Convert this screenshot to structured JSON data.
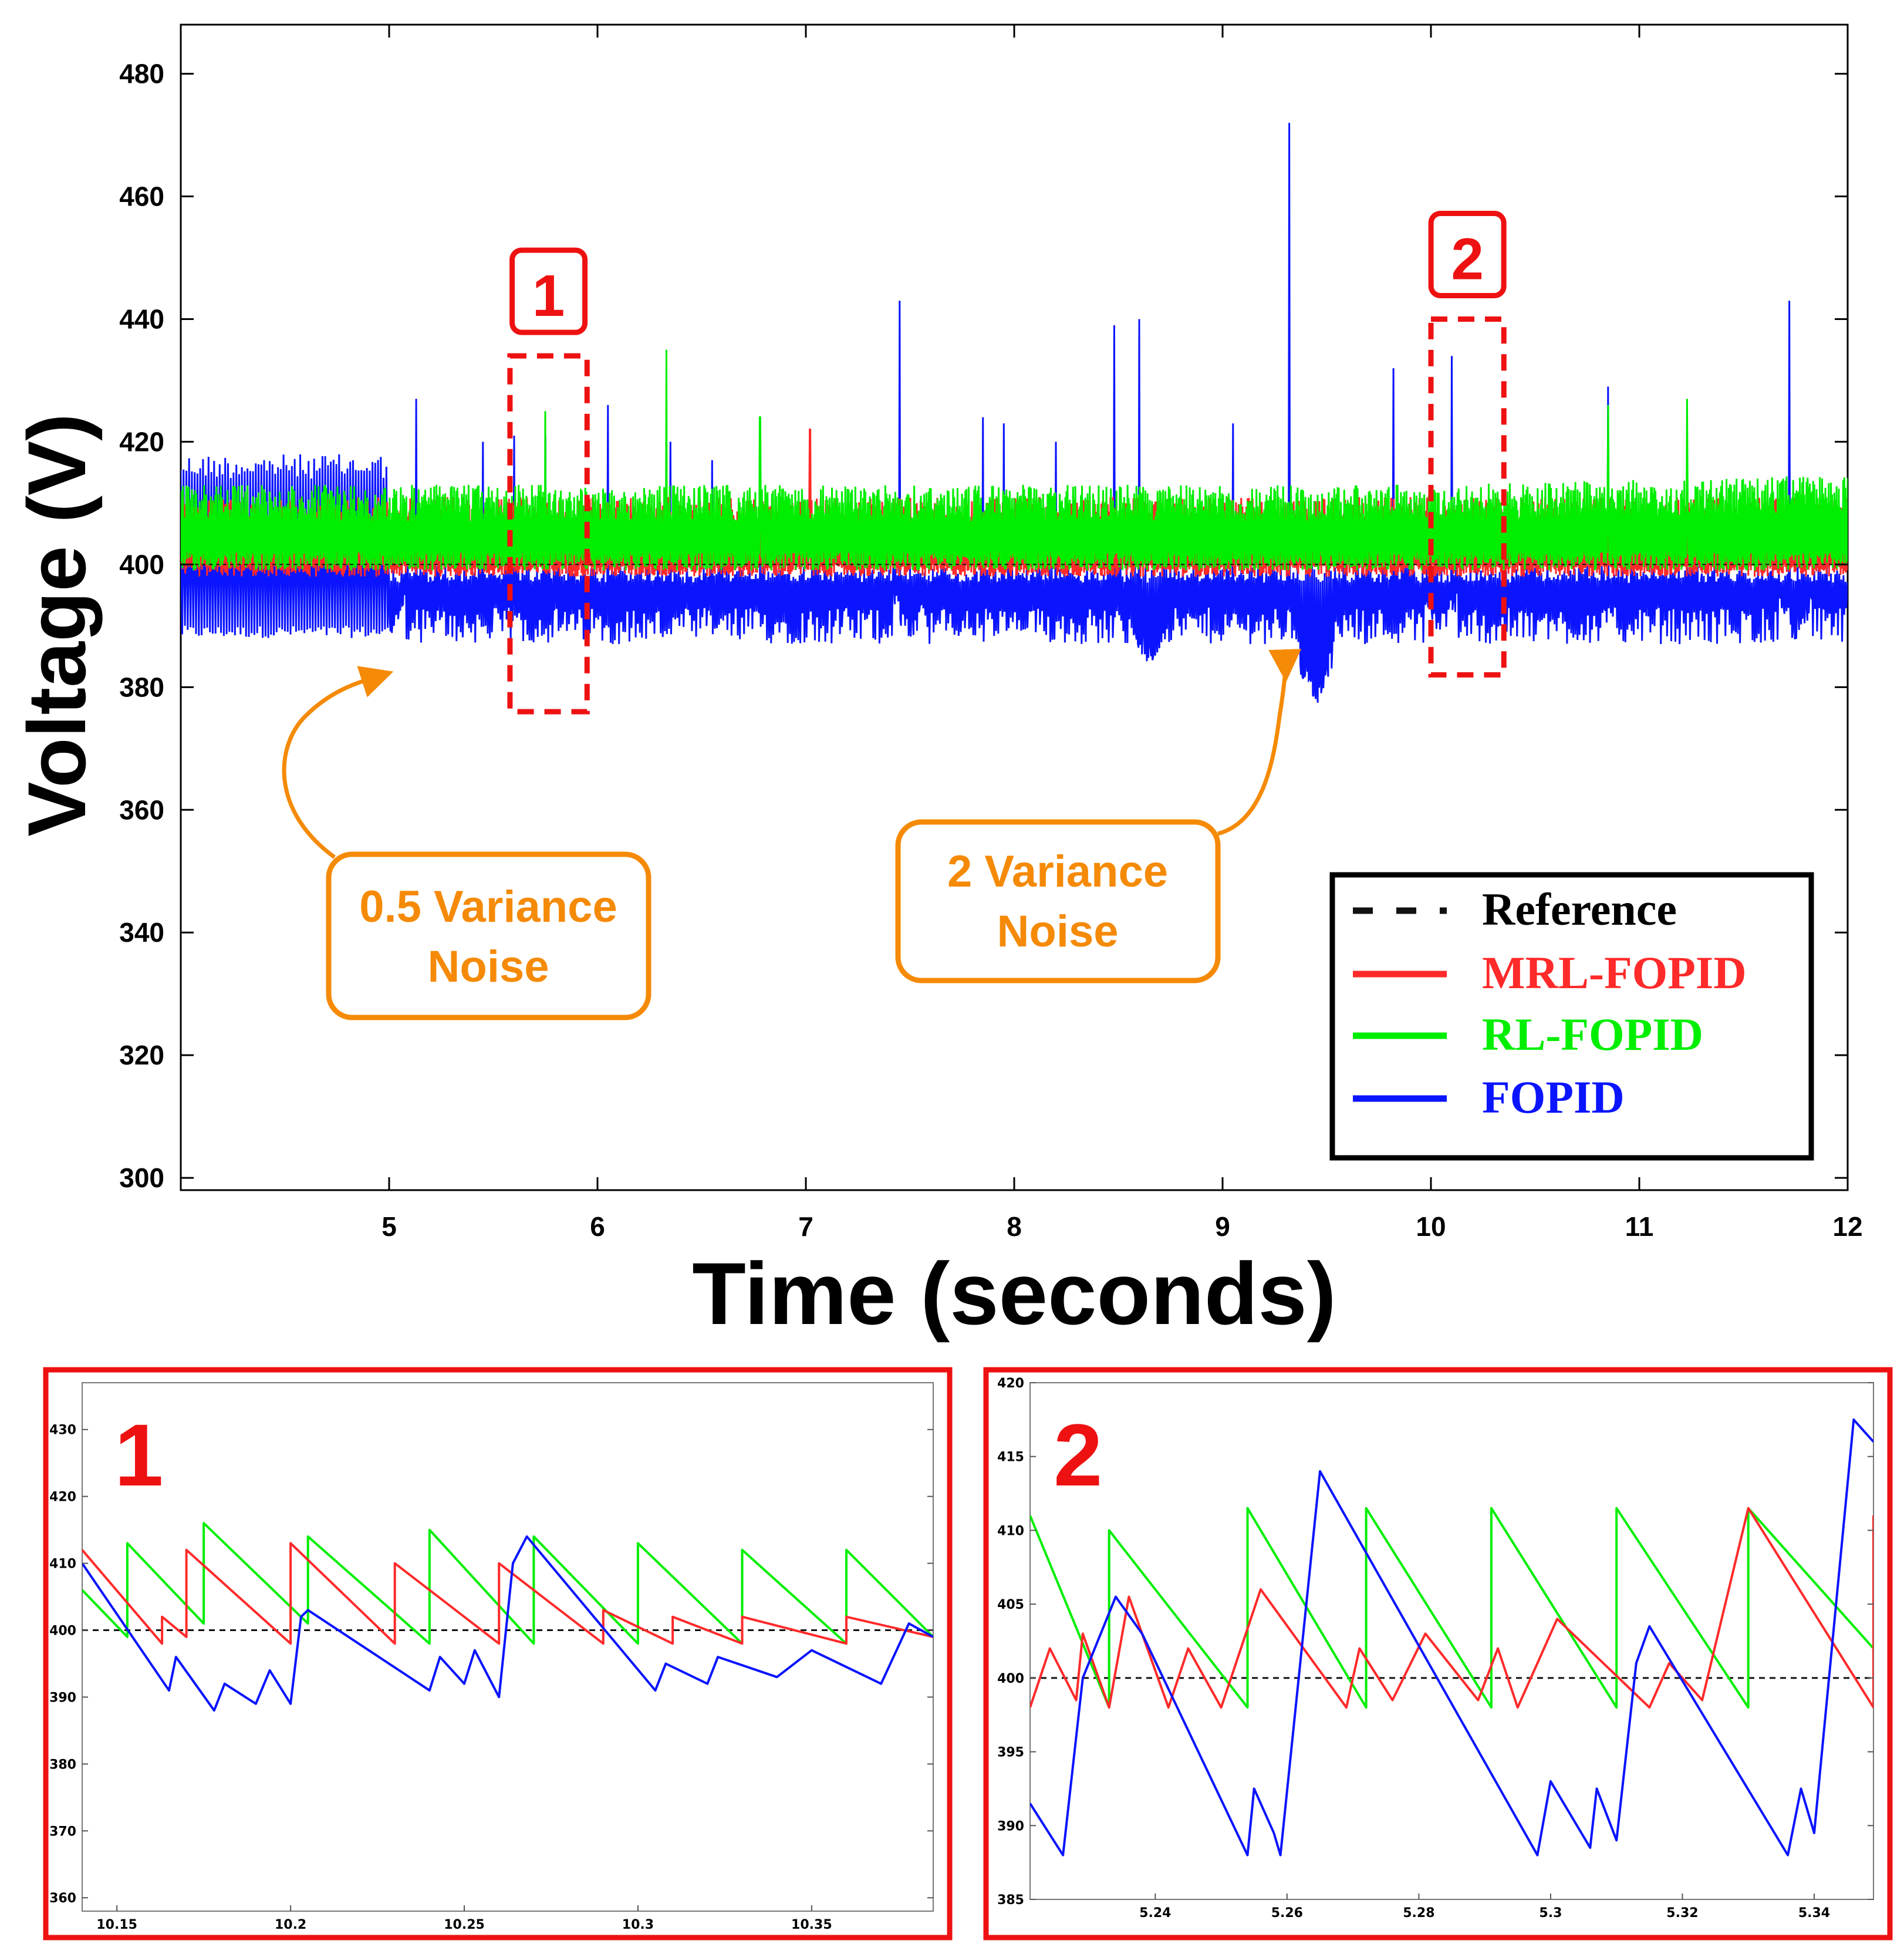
{
  "colors": {
    "reference": "#111111",
    "mrl": "#FF2A2A",
    "rl": "#00EE00",
    "fopid": "#0A14FF",
    "callout": "#F58A07",
    "highlight": "#EE1111"
  },
  "chart_data": [
    {
      "id": "main",
      "type": "line",
      "xlabel": "Time (seconds)",
      "ylabel": "Voltage (V)",
      "xlim": [
        4.0,
        12.0
      ],
      "ylim": [
        298,
        488
      ],
      "xticks": [
        5,
        6,
        7,
        8,
        9,
        10,
        11,
        12
      ],
      "yticks": [
        300,
        320,
        340,
        360,
        380,
        400,
        420,
        440,
        460,
        480
      ],
      "reference_value": 400,
      "legend": {
        "position": "bottom-right",
        "entries": [
          {
            "label": "Reference",
            "series": "reference",
            "style": "dashed"
          },
          {
            "label": "MRL-FOPID",
            "series": "mrl",
            "style": "solid"
          },
          {
            "label": "RL-FOPID",
            "series": "rl",
            "style": "solid"
          },
          {
            "label": "FOPID",
            "series": "fopid",
            "style": "solid"
          }
        ]
      },
      "series_envelopes": {
        "mrl": {
          "low": 398,
          "high": 411
        },
        "rl": {
          "low": 399,
          "high": 413
        },
        "fopid": {
          "low": 387,
          "high": 400
        }
      },
      "fopid_spikes": [
        {
          "x": 5.13,
          "y": 427
        },
        {
          "x": 5.45,
          "y": 420
        },
        {
          "x": 5.6,
          "y": 421
        },
        {
          "x": 5.75,
          "y": 421
        },
        {
          "x": 6.05,
          "y": 426
        },
        {
          "x": 6.35,
          "y": 420
        },
        {
          "x": 6.55,
          "y": 417
        },
        {
          "x": 7.45,
          "y": 443
        },
        {
          "x": 7.85,
          "y": 424
        },
        {
          "x": 7.95,
          "y": 423
        },
        {
          "x": 8.2,
          "y": 420
        },
        {
          "x": 8.48,
          "y": 439
        },
        {
          "x": 8.6,
          "y": 440
        },
        {
          "x": 9.05,
          "y": 423
        },
        {
          "x": 9.32,
          "y": 472
        },
        {
          "x": 9.82,
          "y": 432
        },
        {
          "x": 10.1,
          "y": 434
        },
        {
          "x": 10.85,
          "y": 429
        },
        {
          "x": 11.72,
          "y": 443
        }
      ],
      "fopid_dips": [
        {
          "x": 5.0,
          "y": 388
        },
        {
          "x": 7.5,
          "y": 387
        },
        {
          "x": 8.65,
          "y": 383
        },
        {
          "x": 9.45,
          "y": 377
        },
        {
          "x": 10.05,
          "y": 388
        },
        {
          "x": 11.75,
          "y": 387
        }
      ],
      "green_spikes": [
        {
          "x": 5.75,
          "y": 425
        },
        {
          "x": 6.33,
          "y": 435
        },
        {
          "x": 6.78,
          "y": 424
        },
        {
          "x": 10.85,
          "y": 426
        },
        {
          "x": 11.23,
          "y": 427
        }
      ],
      "red_spikes": [
        {
          "x": 7.02,
          "y": 422
        }
      ],
      "zoom_boxes": [
        {
          "label": "1",
          "x": [
            5.58,
            5.95
          ],
          "y": [
            376,
            434
          ]
        },
        {
          "label": "2",
          "x": [
            10.0,
            10.35
          ],
          "y": [
            382,
            440
          ]
        }
      ],
      "annotations": [
        {
          "text": [
            "0.5 Variance",
            "Noise"
          ],
          "points_to": {
            "x": 5.0,
            "y": 385
          }
        },
        {
          "text": [
            "2 Variance",
            "Noise"
          ],
          "points_to": {
            "x": 9.32,
            "y": 385
          }
        }
      ]
    },
    {
      "id": "inset1",
      "type": "line",
      "label": "1",
      "xlim": [
        10.14,
        10.385
      ],
      "ylim": [
        358,
        437
      ],
      "xticks": [
        10.15,
        10.2,
        10.25,
        10.3,
        10.35
      ],
      "yticks": [
        360,
        370,
        380,
        390,
        400,
        410,
        420,
        430
      ],
      "reference_value": 400,
      "series": {
        "rl": [
          [
            10.14,
            406
          ],
          [
            10.153,
            399
          ],
          [
            10.153,
            413
          ],
          [
            10.175,
            401
          ],
          [
            10.175,
            416
          ],
          [
            10.205,
            401
          ],
          [
            10.205,
            414
          ],
          [
            10.24,
            398
          ],
          [
            10.24,
            415
          ],
          [
            10.27,
            398
          ],
          [
            10.27,
            414
          ],
          [
            10.3,
            398
          ],
          [
            10.3,
            413
          ],
          [
            10.33,
            398
          ],
          [
            10.33,
            412
          ],
          [
            10.36,
            398
          ],
          [
            10.36,
            412
          ],
          [
            10.385,
            399
          ]
        ],
        "mrl": [
          [
            10.14,
            412
          ],
          [
            10.163,
            398
          ],
          [
            10.163,
            402
          ],
          [
            10.17,
            399
          ],
          [
            10.17,
            412
          ],
          [
            10.2,
            398
          ],
          [
            10.2,
            413
          ],
          [
            10.23,
            398
          ],
          [
            10.23,
            410
          ],
          [
            10.26,
            398
          ],
          [
            10.26,
            410
          ],
          [
            10.29,
            398
          ],
          [
            10.29,
            403
          ],
          [
            10.31,
            398
          ],
          [
            10.31,
            402
          ],
          [
            10.33,
            398
          ],
          [
            10.33,
            402
          ],
          [
            10.36,
            398
          ],
          [
            10.36,
            402
          ],
          [
            10.385,
            399
          ]
        ],
        "fopid": [
          [
            10.14,
            410
          ],
          [
            10.165,
            391
          ],
          [
            10.167,
            396
          ],
          [
            10.178,
            388
          ],
          [
            10.181,
            392
          ],
          [
            10.19,
            389
          ],
          [
            10.194,
            394
          ],
          [
            10.2,
            389
          ],
          [
            10.203,
            402
          ],
          [
            10.205,
            403
          ],
          [
            10.24,
            391
          ],
          [
            10.243,
            396
          ],
          [
            10.25,
            392
          ],
          [
            10.253,
            397
          ],
          [
            10.26,
            390
          ],
          [
            10.264,
            410
          ],
          [
            10.268,
            414
          ],
          [
            10.305,
            391
          ],
          [
            10.308,
            395
          ],
          [
            10.32,
            392
          ],
          [
            10.323,
            396
          ],
          [
            10.34,
            393
          ],
          [
            10.35,
            397
          ],
          [
            10.37,
            392
          ],
          [
            10.378,
            401
          ],
          [
            10.385,
            399
          ]
        ]
      }
    },
    {
      "id": "inset2",
      "type": "line",
      "label": "2",
      "xlim": [
        5.221,
        5.349
      ],
      "ylim": [
        385,
        420
      ],
      "xticks": [
        5.24,
        5.26,
        5.28,
        5.3,
        5.32,
        5.34
      ],
      "yticks": [
        385,
        390,
        395,
        400,
        405,
        410,
        415,
        420
      ],
      "reference_value": 400,
      "series": {
        "rl": [
          [
            5.221,
            411
          ],
          [
            5.233,
            398
          ],
          [
            5.233,
            410
          ],
          [
            5.254,
            398
          ],
          [
            5.254,
            411.5
          ],
          [
            5.272,
            398
          ],
          [
            5.272,
            411.5
          ],
          [
            5.291,
            398
          ],
          [
            5.291,
            411.5
          ],
          [
            5.31,
            398
          ],
          [
            5.31,
            411.5
          ],
          [
            5.33,
            398
          ],
          [
            5.33,
            411.5
          ],
          [
            5.349,
            402
          ]
        ],
        "mrl": [
          [
            5.221,
            398
          ],
          [
            5.224,
            402
          ],
          [
            5.228,
            398.5
          ],
          [
            5.229,
            403
          ],
          [
            5.233,
            398
          ],
          [
            5.236,
            405.5
          ],
          [
            5.242,
            398
          ],
          [
            5.245,
            402
          ],
          [
            5.25,
            398
          ],
          [
            5.256,
            406
          ],
          [
            5.269,
            398
          ],
          [
            5.271,
            402
          ],
          [
            5.276,
            398.5
          ],
          [
            5.281,
            403
          ],
          [
            5.289,
            398.5
          ],
          [
            5.292,
            402
          ],
          [
            5.295,
            398
          ],
          [
            5.301,
            404
          ],
          [
            5.315,
            398
          ],
          [
            5.318,
            401
          ],
          [
            5.323,
            398.5
          ],
          [
            5.33,
            411.5
          ],
          [
            5.349,
            398
          ],
          [
            5.349,
            411
          ]
        ],
        "fopid": [
          [
            5.221,
            391.5
          ],
          [
            5.226,
            388
          ],
          [
            5.229,
            400
          ],
          [
            5.234,
            405.5
          ],
          [
            5.238,
            403
          ],
          [
            5.254,
            388
          ],
          [
            5.255,
            392.5
          ],
          [
            5.258,
            389.5
          ],
          [
            5.259,
            388
          ],
          [
            5.265,
            414
          ],
          [
            5.298,
            388
          ],
          [
            5.3,
            393
          ],
          [
            5.306,
            388.5
          ],
          [
            5.307,
            392.5
          ],
          [
            5.31,
            389
          ],
          [
            5.313,
            401
          ],
          [
            5.315,
            403.5
          ],
          [
            5.336,
            388
          ],
          [
            5.338,
            392.5
          ],
          [
            5.34,
            389.5
          ],
          [
            5.346,
            417.5
          ],
          [
            5.349,
            416
          ]
        ]
      }
    }
  ]
}
